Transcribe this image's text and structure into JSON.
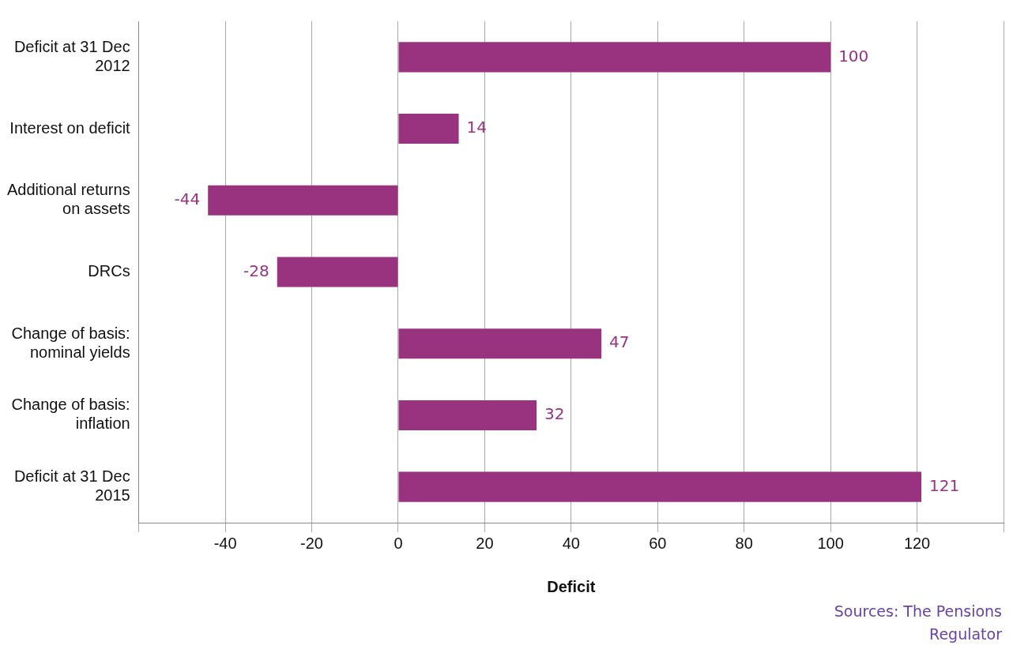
{
  "chart_data": {
    "type": "bar",
    "orientation": "horizontal",
    "categories": [
      "Deficit at 31 Dec 2012",
      "Interest on deficit",
      "Additional returns on assets",
      "DRCs",
      "Change of basis: nominal yields",
      "Change of basis: inflation",
      "Deficit at 31 Dec 2015"
    ],
    "values": [
      100,
      14,
      -44,
      -28,
      47,
      32,
      121
    ],
    "color": "#993380",
    "xlabel": "Deficit",
    "xlim": [
      -60,
      140
    ],
    "xticks": [
      {
        "value": -60,
        "label": null
      },
      -40,
      -20,
      0,
      20,
      40,
      60,
      80,
      100,
      120,
      {
        "value": 140,
        "label": null
      }
    ],
    "grid": "x",
    "legend": false,
    "data_labels": true,
    "annotations": [
      "Sources: The Pensions Regulator"
    ]
  }
}
